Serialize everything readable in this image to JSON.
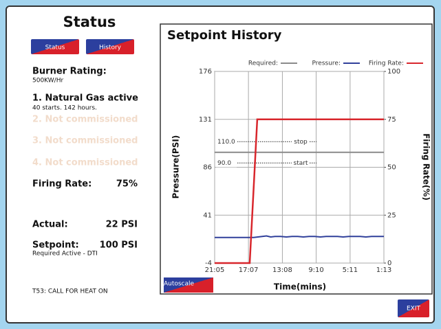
{
  "sidebar": {
    "title": "Status",
    "buttons": [
      "Status",
      "History"
    ],
    "burner_label": "Burner Rating:",
    "burner_value": "500KW/Hr",
    "fuels": [
      {
        "label": "1. Natural Gas active",
        "detail": "40 starts. 142 hours."
      },
      {
        "label": "2. Not commissioned"
      },
      {
        "label": "3. Not commissioned"
      },
      {
        "label": "4. Not commissioned"
      }
    ],
    "firing_rate_label": "Firing Rate:",
    "firing_rate_value": "75%",
    "actual_label": "Actual:",
    "actual_value": "22 PSI",
    "setpoint_label": "Setpoint:",
    "setpoint_value": "100 PSI",
    "setpoint_note": "Required Active - DTI",
    "status_message": "T53: CALL FOR HEAT ON"
  },
  "autoscale_button": "Autoscale",
  "exit_button": "EXIT",
  "chart_data": {
    "type": "line",
    "title": "Setpoint History",
    "y_label": "Pressure(PSI)",
    "y2_label": "Firing Rate(%)",
    "x_label": "Time(mins)",
    "xlim": [
      1265,
      73
    ],
    "xticks": [
      {
        "value": 1265,
        "label": "21:05"
      },
      {
        "value": 1027,
        "label": "17:07"
      },
      {
        "value": 788,
        "label": "13:08"
      },
      {
        "value": 550,
        "label": "9:10"
      },
      {
        "value": 311,
        "label": "5:11"
      },
      {
        "value": 73,
        "label": "1:13"
      }
    ],
    "ylim": [
      -4,
      176
    ],
    "yticks": [
      176,
      131,
      86,
      41,
      -4
    ],
    "y2lim": [
      0,
      100
    ],
    "y2ticks": [
      100,
      75,
      50,
      25,
      0
    ],
    "grid": true,
    "series": [
      {
        "name": "Required:",
        "color": "#8a8a8a",
        "x": [
          1265,
          73
        ],
        "values": [
          100,
          100
        ]
      },
      {
        "name": "Pressure:",
        "color": "#2f3f9a",
        "x": [
          1265,
          1205,
          1145,
          1085,
          1025,
          990,
          960,
          930,
          900,
          870,
          840,
          800,
          760,
          720,
          680,
          640,
          600,
          560,
          520,
          480,
          440,
          400,
          360,
          320,
          280,
          240,
          200,
          160,
          120,
          73
        ],
        "values": [
          20,
          20,
          20,
          20,
          20,
          20,
          20.5,
          21,
          21.5,
          20.5,
          21,
          21,
          20.5,
          21,
          21,
          20.5,
          21,
          21,
          20.5,
          21,
          21,
          21,
          20.5,
          21,
          21,
          21,
          20.5,
          21,
          21,
          21
        ]
      },
      {
        "name": "Firing Rate:",
        "color": "#d8262c",
        "axis": "y2",
        "x": [
          1265,
          1018,
          965,
          73
        ],
        "values": [
          0,
          0,
          75,
          75
        ]
      }
    ],
    "annotations": [
      {
        "value": 110,
        "label": "110.0",
        "text": "stop"
      },
      {
        "value": 90,
        "label": "90.0",
        "text": "start"
      }
    ]
  }
}
